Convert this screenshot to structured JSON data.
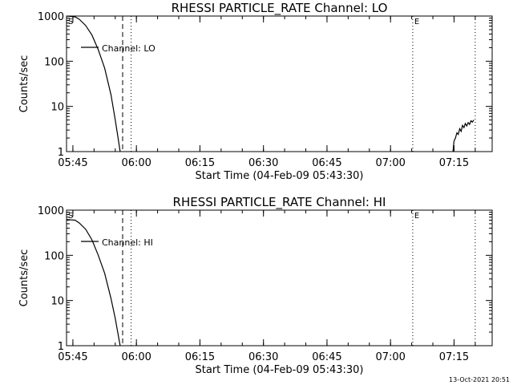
{
  "timestamp": "13-Oct-2021 20:51",
  "chart_data": [
    {
      "type": "line",
      "title": "RHESSI PARTICLE_RATE Channel: LO",
      "xlabel": "Start Time (04-Feb-09 05:43:30)",
      "ylabel": "Counts/sec",
      "yscale": "log",
      "ylim": [
        1,
        1000
      ],
      "xlim": [
        "05:43:30",
        "07:24:00"
      ],
      "x_ticks": [
        "05:45",
        "06:00",
        "06:15",
        "06:30",
        "06:45",
        "07:00",
        "07:15"
      ],
      "y_ticks": [
        "1",
        "10",
        "100",
        "1000"
      ],
      "legend": "Channel: LO",
      "markers": [
        {
          "time": "05:56:45",
          "style": "dashed",
          "label": ""
        },
        {
          "time": "05:58:45",
          "style": "dotted",
          "label": ""
        },
        {
          "time": "07:05:15",
          "style": "dotted",
          "label": "E"
        },
        {
          "time": "07:20:00",
          "style": "dotted",
          "label": ""
        }
      ],
      "corner_label": "S",
      "series": [
        {
          "segments": [
            {
              "x": [
                "05:43:30",
                "05:45:30",
                "05:46:30",
                "05:48:00",
                "05:49:30",
                "05:51:00",
                "05:52:30",
                "05:54:00",
                "05:55:00",
                "05:55:40",
                "05:56:10"
              ],
              "y": [
                1000,
                960,
                850,
                620,
                380,
                180,
                70,
                18,
                5,
                2,
                1
              ]
            },
            {
              "x": [
                "07:14:45",
                "07:15:00",
                "07:15:20",
                "07:15:40",
                "07:16:00",
                "07:16:20",
                "07:16:40",
                "07:17:00",
                "07:17:20",
                "07:17:40",
                "07:18:00",
                "07:18:20",
                "07:18:40",
                "07:19:00",
                "07:19:20",
                "07:19:40"
              ],
              "y": [
                1,
                1.7,
                2.0,
                2.6,
                2.4,
                3.2,
                2.8,
                3.8,
                3.4,
                4.2,
                3.7,
                4.4,
                4.0,
                4.8,
                4.5,
                5.0
              ]
            }
          ]
        }
      ]
    },
    {
      "type": "line",
      "title": "RHESSI PARTICLE_RATE Channel: HI",
      "xlabel": "Start Time (04-Feb-09 05:43:30)",
      "ylabel": "Counts/sec",
      "yscale": "log",
      "ylim": [
        1,
        1000
      ],
      "xlim": [
        "05:43:30",
        "07:24:00"
      ],
      "x_ticks": [
        "05:45",
        "06:00",
        "06:15",
        "06:30",
        "06:45",
        "07:00",
        "07:15"
      ],
      "y_ticks": [
        "1",
        "10",
        "100",
        "1000"
      ],
      "legend": "Channel: HI",
      "markers": [
        {
          "time": "05:56:45",
          "style": "dashed",
          "label": ""
        },
        {
          "time": "05:58:45",
          "style": "dotted",
          "label": ""
        },
        {
          "time": "07:05:15",
          "style": "dotted",
          "label": "E"
        },
        {
          "time": "07:20:00",
          "style": "dotted",
          "label": ""
        }
      ],
      "corner_label": "S",
      "series": [
        {
          "segments": [
            {
              "x": [
                "05:43:30",
                "05:45:30",
                "05:46:30",
                "05:48:00",
                "05:49:30",
                "05:51:00",
                "05:52:30",
                "05:54:00",
                "05:55:00",
                "05:55:40",
                "05:56:10"
              ],
              "y": [
                620,
                600,
                520,
                380,
                220,
                100,
                40,
                11,
                4,
                1.8,
                1
              ]
            }
          ]
        }
      ]
    }
  ]
}
